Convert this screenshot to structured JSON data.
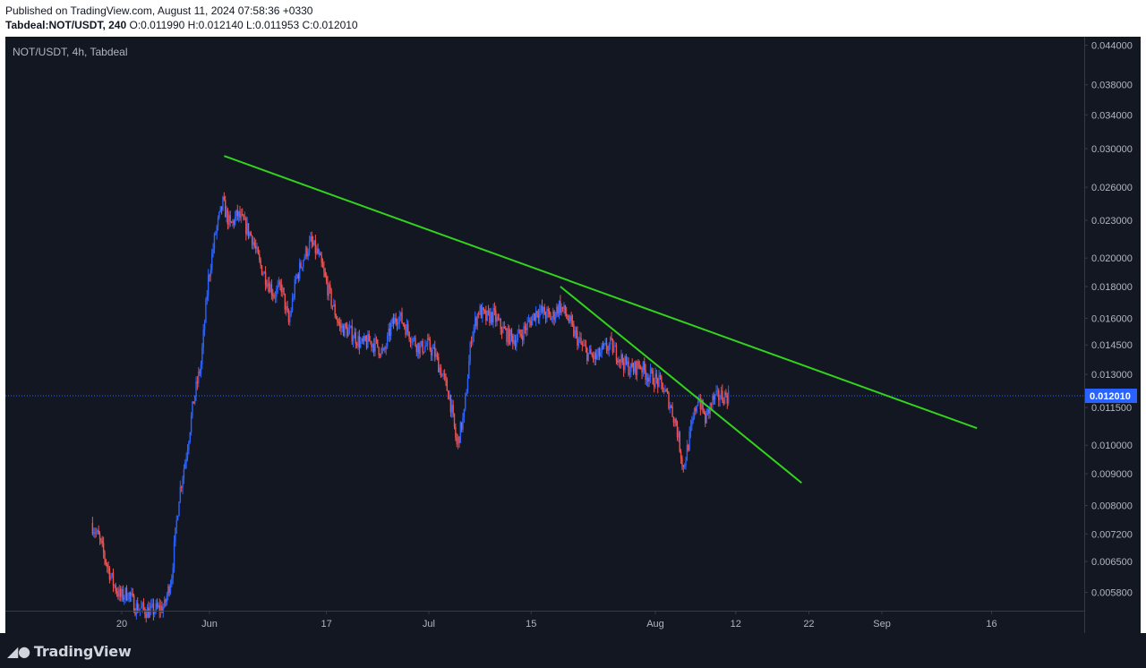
{
  "header": {
    "published": "Published on TradingView.com, August 11, 2024 07:58:36 +0330",
    "symbol_line": "Tabdeal:NOT/USDT, 240",
    "ohlc": "O:0.011990 H:0.012140 L:0.011953 C:0.012010"
  },
  "footer": {
    "brand": "TradingView",
    "logo_icon": "tradingview-logo-icon"
  },
  "colors": {
    "background": "#131722",
    "up": "#2962ff",
    "down": "#ef5350",
    "trendline": "#32d21e",
    "price_line": "#2962ff",
    "axis_text": "#b2b5be"
  },
  "chart_data": {
    "type": "candlestick",
    "symbol_label": "NOT/USDT, 4h, Tabdeal",
    "price_scale": "log",
    "y_ticks": [
      0.044,
      0.038,
      0.034,
      0.03,
      0.026,
      0.023,
      0.02,
      0.018,
      0.016,
      0.0145,
      0.013,
      0.0115,
      0.01,
      0.009,
      0.008,
      0.0072,
      0.0065,
      0.0058
    ],
    "y_tick_labels": [
      "0.044000",
      "0.038000",
      "0.034000",
      "0.030000",
      "0.026000",
      "0.023000",
      "0.020000",
      "0.018000",
      "0.016000",
      "0.014500",
      "0.013000",
      "0.011500",
      "0.010000",
      "0.009000",
      "0.008000",
      "0.007200",
      "0.006500",
      "0.005800"
    ],
    "x_ticks": [
      {
        "date": "2024-05-20",
        "label": "20"
      },
      {
        "date": "2024-06-01",
        "label": "Jun"
      },
      {
        "date": "2024-06-17",
        "label": "17"
      },
      {
        "date": "2024-07-01",
        "label": "Jul"
      },
      {
        "date": "2024-07-15",
        "label": "15"
      },
      {
        "date": "2024-08-01",
        "label": "Aug"
      },
      {
        "date": "2024-08-12",
        "label": "12"
      },
      {
        "date": "2024-08-22",
        "label": "22"
      },
      {
        "date": "2024-09-01",
        "label": "Sep"
      },
      {
        "date": "2024-09-16",
        "label": "16"
      }
    ],
    "last_price": 0.01201,
    "last_price_label": "0.012010",
    "path": [
      [
        "2024-05-16",
        0.0075
      ],
      [
        "2024-05-17",
        0.0071
      ],
      [
        "2024-05-18",
        0.0065
      ],
      [
        "2024-05-19",
        0.006
      ],
      [
        "2024-05-20",
        0.0057
      ],
      [
        "2024-05-21",
        0.0058
      ],
      [
        "2024-05-22",
        0.0055
      ],
      [
        "2024-05-24",
        0.0054
      ],
      [
        "2024-05-26",
        0.0055
      ],
      [
        "2024-05-27",
        0.0062
      ],
      [
        "2024-05-28",
        0.0083
      ],
      [
        "2024-05-29",
        0.0097
      ],
      [
        "2024-05-30",
        0.0118
      ],
      [
        "2024-05-31",
        0.0135
      ],
      [
        "2024-06-01",
        0.0185
      ],
      [
        "2024-06-02",
        0.022
      ],
      [
        "2024-06-03",
        0.0245
      ],
      [
        "2024-06-04",
        0.0225
      ],
      [
        "2024-06-05",
        0.0235
      ],
      [
        "2024-06-06",
        0.0226
      ],
      [
        "2024-06-07",
        0.0216
      ],
      [
        "2024-06-08",
        0.0196
      ],
      [
        "2024-06-09",
        0.0185
      ],
      [
        "2024-06-10",
        0.0175
      ],
      [
        "2024-06-11",
        0.018
      ],
      [
        "2024-06-12",
        0.0157
      ],
      [
        "2024-06-13",
        0.0185
      ],
      [
        "2024-06-14",
        0.02
      ],
      [
        "2024-06-15",
        0.0212
      ],
      [
        "2024-06-16",
        0.0203
      ],
      [
        "2024-06-17",
        0.0185
      ],
      [
        "2024-06-18",
        0.0168
      ],
      [
        "2024-06-19",
        0.0155
      ],
      [
        "2024-06-20",
        0.0153
      ],
      [
        "2024-06-21",
        0.015
      ],
      [
        "2024-06-22",
        0.0145
      ],
      [
        "2024-06-23",
        0.0147
      ],
      [
        "2024-06-24",
        0.0145
      ],
      [
        "2024-06-25",
        0.014
      ],
      [
        "2024-06-26",
        0.0155
      ],
      [
        "2024-06-27",
        0.0162
      ],
      [
        "2024-06-28",
        0.0155
      ],
      [
        "2024-06-29",
        0.0148
      ],
      [
        "2024-06-30",
        0.0143
      ],
      [
        "2024-07-01",
        0.0145
      ],
      [
        "2024-07-02",
        0.014
      ],
      [
        "2024-07-03",
        0.013
      ],
      [
        "2024-07-04",
        0.012
      ],
      [
        "2024-07-05",
        0.01
      ],
      [
        "2024-07-06",
        0.0112
      ],
      [
        "2024-07-07",
        0.015
      ],
      [
        "2024-07-08",
        0.0165
      ],
      [
        "2024-07-09",
        0.016
      ],
      [
        "2024-07-10",
        0.0162
      ],
      [
        "2024-07-11",
        0.0155
      ],
      [
        "2024-07-12",
        0.015
      ],
      [
        "2024-07-13",
        0.0148
      ],
      [
        "2024-07-14",
        0.0152
      ],
      [
        "2024-07-15",
        0.0158
      ],
      [
        "2024-07-16",
        0.0165
      ],
      [
        "2024-07-17",
        0.0163
      ],
      [
        "2024-07-18",
        0.016
      ],
      [
        "2024-07-19",
        0.0168
      ],
      [
        "2024-07-20",
        0.0162
      ],
      [
        "2024-07-21",
        0.0152
      ],
      [
        "2024-07-22",
        0.0145
      ],
      [
        "2024-07-23",
        0.014
      ],
      [
        "2024-07-24",
        0.0138
      ],
      [
        "2024-07-25",
        0.0142
      ],
      [
        "2024-07-26",
        0.0145
      ],
      [
        "2024-07-27",
        0.014
      ],
      [
        "2024-07-28",
        0.0135
      ],
      [
        "2024-07-29",
        0.0132
      ],
      [
        "2024-07-30",
        0.0135
      ],
      [
        "2024-07-31",
        0.013
      ],
      [
        "2024-08-01",
        0.0128
      ],
      [
        "2024-08-02",
        0.0125
      ],
      [
        "2024-08-03",
        0.0118
      ],
      [
        "2024-08-04",
        0.0108
      ],
      [
        "2024-08-05",
        0.0092
      ],
      [
        "2024-08-06",
        0.0105
      ],
      [
        "2024-08-07",
        0.012
      ],
      [
        "2024-08-08",
        0.011
      ],
      [
        "2024-08-09",
        0.0118
      ],
      [
        "2024-08-10",
        0.012
      ],
      [
        "2024-08-11",
        0.01201
      ]
    ],
    "trendlines": [
      {
        "start": [
          "2024-06-03",
          0.0292
        ],
        "end": [
          "2024-09-14",
          0.01065
        ]
      },
      {
        "start": [
          "2024-07-19",
          0.018
        ],
        "end": [
          "2024-08-21",
          0.0087
        ]
      }
    ]
  }
}
